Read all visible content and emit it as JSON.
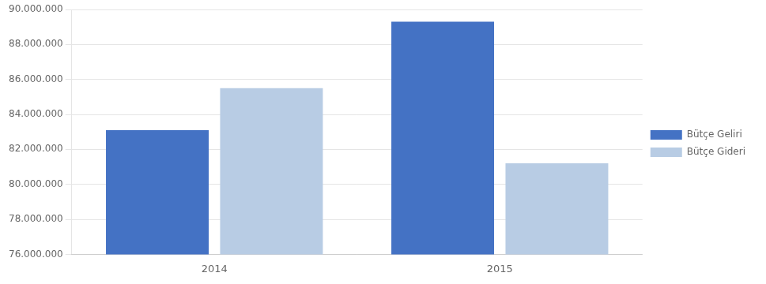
{
  "chart_data": {
    "type": "bar",
    "categories": [
      "2014",
      "2015"
    ],
    "series": [
      {
        "name": "Bütçe Geliri",
        "color": "#4472C4",
        "values": [
          83100000,
          89300000
        ]
      },
      {
        "name": "Bütçe Gideri",
        "color": "#B8CCE4",
        "values": [
          85500000,
          81200000
        ]
      }
    ],
    "ylim": [
      76000000,
      90000000
    ],
    "yticks": [
      {
        "value": 76000000,
        "label": "76.000.000"
      },
      {
        "value": 78000000,
        "label": "78.000.000"
      },
      {
        "value": 80000000,
        "label": "80.000.000"
      },
      {
        "value": 82000000,
        "label": "82.000.000"
      },
      {
        "value": 84000000,
        "label": "84.000.000"
      },
      {
        "value": 86000000,
        "label": "86.000.000"
      },
      {
        "value": 88000000,
        "label": "88.000.000"
      },
      {
        "value": 90000000,
        "label": "90.000.000"
      }
    ],
    "grid": true,
    "legend": "right"
  }
}
